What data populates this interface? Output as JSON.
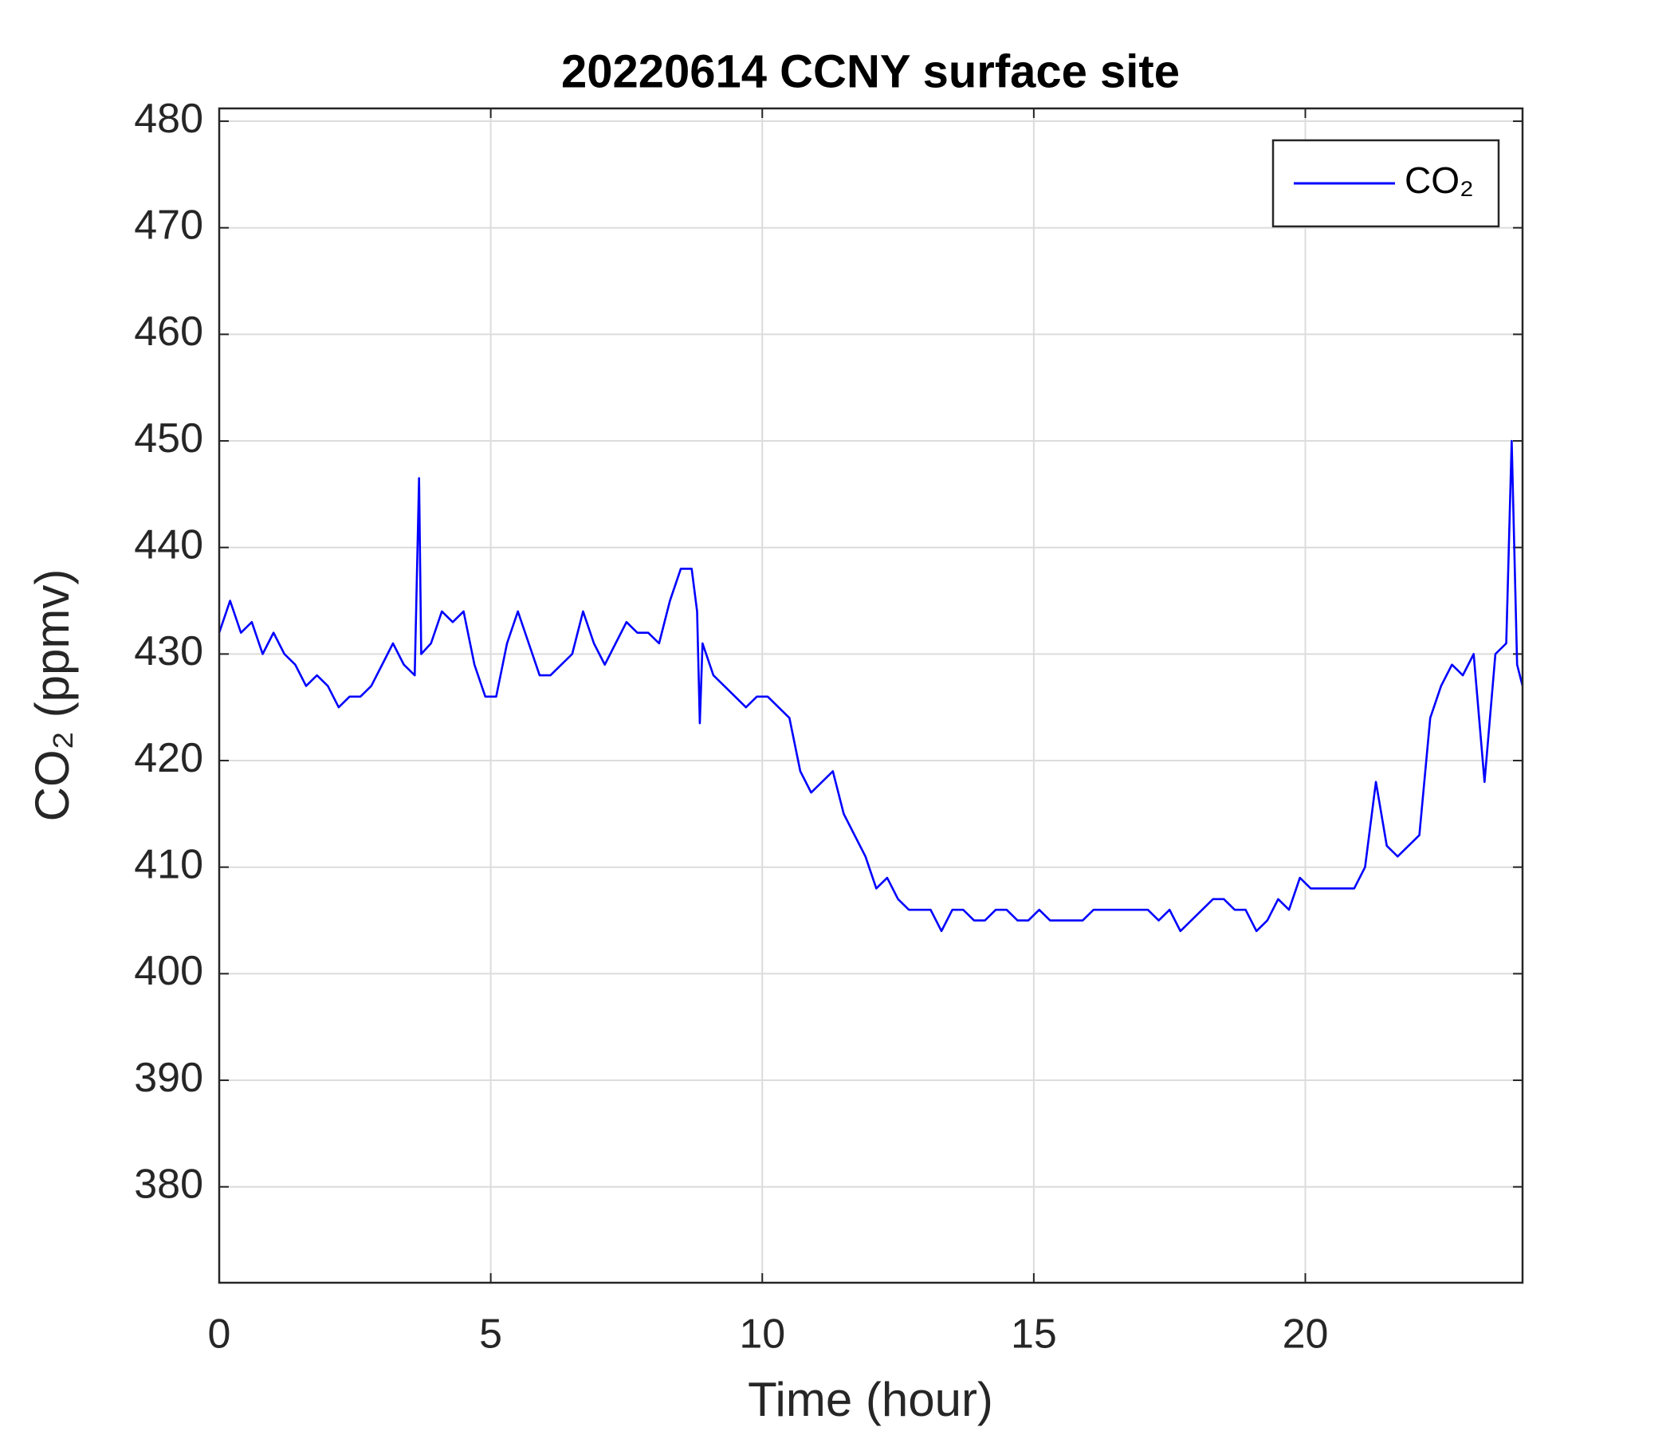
{
  "chart_data": {
    "type": "line",
    "title": "20220614 CCNY surface site",
    "xlabel": "Time (hour)",
    "ylabel": "CO₂ (ppmv)",
    "x": [
      0,
      0.2,
      0.4,
      0.6,
      0.8,
      1.0,
      1.2,
      1.4,
      1.6,
      1.8,
      2.0,
      2.2,
      2.4,
      2.6,
      2.8,
      3.0,
      3.2,
      3.4,
      3.6,
      3.68,
      3.72,
      3.9,
      4.1,
      4.3,
      4.5,
      4.7,
      4.9,
      5.1,
      5.3,
      5.5,
      5.7,
      5.9,
      6.1,
      6.3,
      6.5,
      6.7,
      6.9,
      7.1,
      7.3,
      7.5,
      7.7,
      7.9,
      8.1,
      8.3,
      8.5,
      8.7,
      8.8,
      8.85,
      8.9,
      9.1,
      9.3,
      9.5,
      9.7,
      9.9,
      10.1,
      10.3,
      10.5,
      10.7,
      10.9,
      11.1,
      11.3,
      11.5,
      11.7,
      11.9,
      12.1,
      12.3,
      12.5,
      12.7,
      12.9,
      13.1,
      13.3,
      13.5,
      13.7,
      13.9,
      14.1,
      14.3,
      14.5,
      14.7,
      14.9,
      15.1,
      15.3,
      15.5,
      15.7,
      15.9,
      16.1,
      16.3,
      16.5,
      16.7,
      16.9,
      17.1,
      17.3,
      17.5,
      17.7,
      17.9,
      18.1,
      18.3,
      18.5,
      18.7,
      18.9,
      19.1,
      19.3,
      19.5,
      19.7,
      19.9,
      20.1,
      20.3,
      20.5,
      20.7,
      20.9,
      21.1,
      21.3,
      21.5,
      21.7,
      21.9,
      22.1,
      22.3,
      22.5,
      22.7,
      22.9,
      23.1,
      23.3,
      23.5,
      23.7,
      23.8,
      23.9,
      24.0
    ],
    "series": [
      {
        "name": "CO₂",
        "color": "#0000ff",
        "values": [
          432,
          435,
          432,
          433,
          430,
          432,
          430,
          429,
          427,
          428,
          427,
          425,
          426,
          426,
          427,
          429,
          431,
          429,
          428,
          446.5,
          430,
          431,
          434,
          433,
          434,
          429,
          426,
          426,
          431,
          434,
          431,
          428,
          428,
          429,
          430,
          434,
          431,
          429,
          431,
          433,
          432,
          432,
          431,
          435,
          438,
          438,
          434,
          423.5,
          431,
          428,
          427,
          426,
          425,
          426,
          426,
          425,
          424,
          419,
          417,
          418,
          419,
          415,
          413,
          411,
          408,
          409,
          407,
          406,
          406,
          406,
          404,
          406,
          406,
          405,
          405,
          406,
          406,
          405,
          405,
          406,
          405,
          405,
          405,
          405,
          406,
          406,
          406,
          406,
          406,
          406,
          405,
          406,
          404,
          405,
          406,
          407,
          407,
          406,
          406,
          404,
          405,
          407,
          406,
          409,
          408,
          408,
          408,
          408,
          408,
          410,
          418,
          412,
          411,
          412,
          413,
          424,
          427,
          429,
          428,
          430,
          418,
          430,
          431,
          450,
          429,
          427
        ]
      }
    ],
    "xlim": [
      0,
      24
    ],
    "xticks": [
      0,
      5,
      10,
      15,
      20
    ],
    "ylim": [
      371,
      481.2
    ],
    "yticks": [
      380,
      390,
      400,
      410,
      420,
      430,
      440,
      450,
      460,
      470,
      480
    ],
    "grid": true,
    "legend": "northeast"
  }
}
